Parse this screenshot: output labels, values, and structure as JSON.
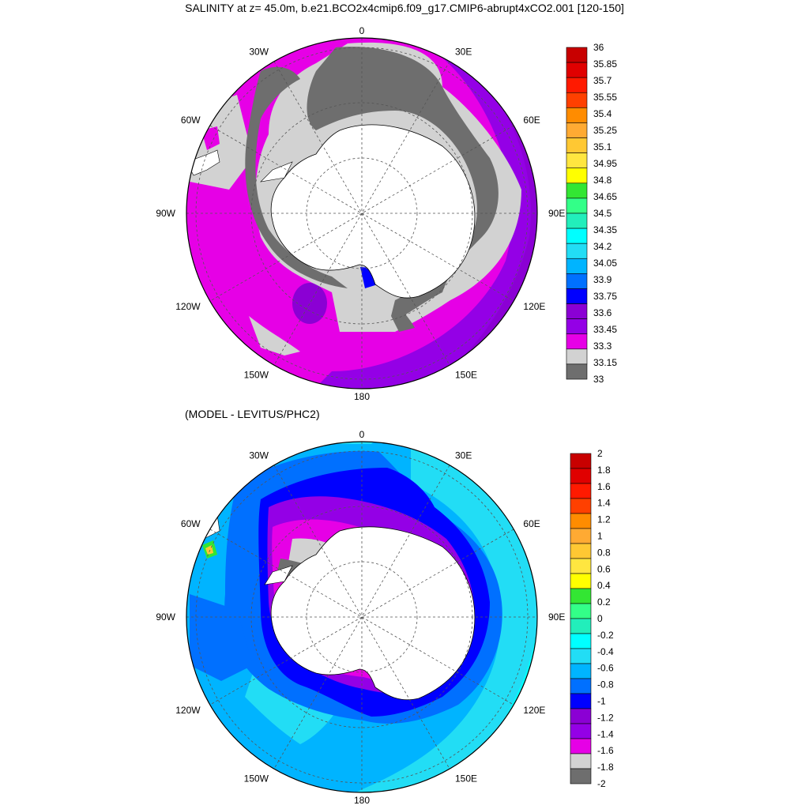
{
  "title": "SALINITY at z=  45.0m, b.e21.BCO2x4cmip6.f09_g17.CMIP6-abrupt4xCO2.001 [120-150]",
  "subtitle": "(MODEL - LEVITUS/PHC2)",
  "longitude_labels": [
    "0",
    "30E",
    "60E",
    "90E",
    "120E",
    "150E",
    "180",
    "150W",
    "120W",
    "90W",
    "60W",
    "30W"
  ],
  "map1": {
    "colorbar_labels": [
      "36",
      "35.85",
      "35.7",
      "35.55",
      "35.4",
      "35.25",
      "35.1",
      "34.95",
      "34.8",
      "34.65",
      "34.5",
      "34.35",
      "34.2",
      "34.05",
      "33.9",
      "33.75",
      "33.6",
      "33.45",
      "33.3",
      "33.15",
      "33"
    ],
    "colorbar_colors": [
      "#c80000",
      "#e00000",
      "#ff1a00",
      "#ff4000",
      "#ff8c00",
      "#ffaa33",
      "#ffc833",
      "#ffe640",
      "#ffff00",
      "#33e633",
      "#33ff88",
      "#22eebb",
      "#00ffff",
      "#22ddf5",
      "#00b4ff",
      "#0070ff",
      "#0000ff",
      "#8b00d4",
      "#9400e6",
      "#e600e6",
      "#d2d2d2",
      "#6e6e6e"
    ]
  },
  "map2": {
    "colorbar_labels": [
      "2",
      "1.8",
      "1.6",
      "1.4",
      "1.2",
      "1",
      "0.8",
      "0.6",
      "0.4",
      "0.2",
      "0",
      "-0.2",
      "-0.4",
      "-0.6",
      "-0.8",
      "-1",
      "-1.2",
      "-1.4",
      "-1.6",
      "-1.8",
      "-2"
    ],
    "colorbar_colors": [
      "#c80000",
      "#e00000",
      "#ff1a00",
      "#ff4000",
      "#ff8c00",
      "#ffaa33",
      "#ffc833",
      "#ffe640",
      "#ffff00",
      "#33e633",
      "#33ff88",
      "#22eebb",
      "#00ffff",
      "#22ddf5",
      "#00b4ff",
      "#0070ff",
      "#0000ff",
      "#8b00d4",
      "#9400e6",
      "#e600e6",
      "#d2d2d2",
      "#6e6e6e"
    ]
  }
}
